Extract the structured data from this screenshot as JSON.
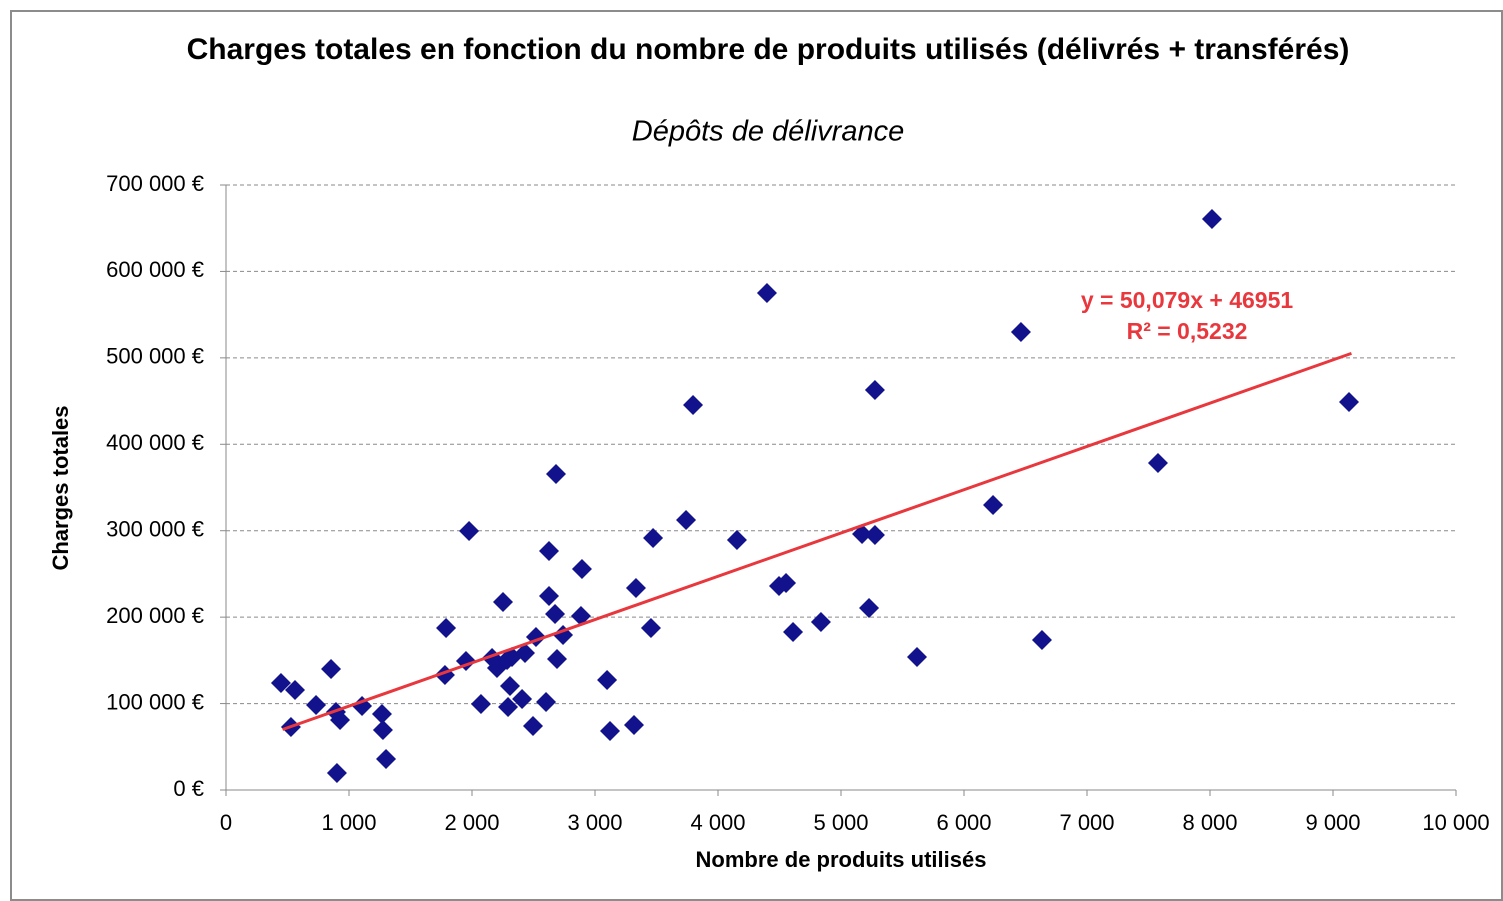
{
  "chart_data": {
    "type": "scatter",
    "title": "Charges totales en fonction du nombre de produits utilisés (délivrés + transférés)",
    "subtitle": "Dépôts de délivrance",
    "x_label": "Nombre de produits utilisés",
    "y_label": "Charges totales",
    "color": "#12128c",
    "grid": true,
    "xlim": [
      0,
      10000
    ],
    "ylim": [
      0,
      700000
    ],
    "xticks": [
      0,
      {
        "value": 1000,
        "label": "1 000"
      },
      {
        "value": 2000,
        "label": "2 000"
      },
      {
        "value": 3000,
        "label": "3 000"
      },
      {
        "value": 4000,
        "label": "4 000"
      },
      {
        "value": 5000,
        "label": "5 000"
      },
      {
        "value": 6000,
        "label": "6 000"
      },
      {
        "value": 7000,
        "label": "7 000"
      },
      {
        "value": 8000,
        "label": "8 000"
      },
      {
        "value": 9000,
        "label": "9 000"
      },
      {
        "value": 10000,
        "label": "10 000"
      }
    ],
    "yticks": [
      {
        "value": 0,
        "label": "0 €"
      },
      {
        "value": 100000,
        "label": "100 000 €"
      },
      {
        "value": 200000,
        "label": "200 000 €"
      },
      {
        "value": 300000,
        "label": "300 000 €"
      },
      {
        "value": 400000,
        "label": "400 000 €"
      },
      {
        "value": 500000,
        "label": "500 000 €"
      },
      {
        "value": 600000,
        "label": "600 000 €"
      },
      {
        "value": 700000,
        "label": "700 000 €"
      }
    ],
    "x": [
      447,
      561,
      528,
      732,
      854,
      894,
      927,
      902,
      1106,
      1268,
      1276,
      1301,
      1789,
      1780,
      1951,
      1976,
      2073,
      2163,
      2203,
      2252,
      2285,
      2309,
      2325,
      2293,
      2407,
      2431,
      2496,
      2520,
      2602,
      2626,
      2626,
      2675,
      2683,
      2691,
      2740,
      2894,
      2886,
      3098,
      3122,
      3317,
      3333,
      3455,
      3472,
      3740,
      3797,
      4154,
      4398,
      4496,
      4553,
      4610,
      4837,
      5171,
      5228,
      5276,
      5276,
      5618,
      6236,
      6463,
      6634,
      7577,
      8016,
      9130
    ],
    "values": [
      123800,
      115700,
      72900,
      98300,
      140000,
      90200,
      81000,
      19700,
      97200,
      87900,
      69400,
      35900,
      187400,
      133100,
      149300,
      299700,
      99500,
      152700,
      141200,
      217500,
      150400,
      120300,
      153900,
      96000,
      105300,
      158500,
      74000,
      177000,
      101800,
      276500,
      224500,
      203600,
      365600,
      151600,
      179300,
      255700,
      201300,
      127300,
      68300,
      75200,
      233700,
      187400,
      291600,
      312400,
      445400,
      289300,
      575000,
      236000,
      239500,
      182800,
      194400,
      296200,
      210600,
      295000,
      462800,
      153900,
      329700,
      529900,
      173600,
      378300,
      660600,
      448900
    ],
    "trendline": {
      "color": "#e8383d",
      "x": [
        460,
        9150
      ],
      "values": [
        69987,
        505174
      ]
    },
    "annotations": [
      "y = 50,079x + 46951",
      "R² = 0,5232"
    ]
  }
}
